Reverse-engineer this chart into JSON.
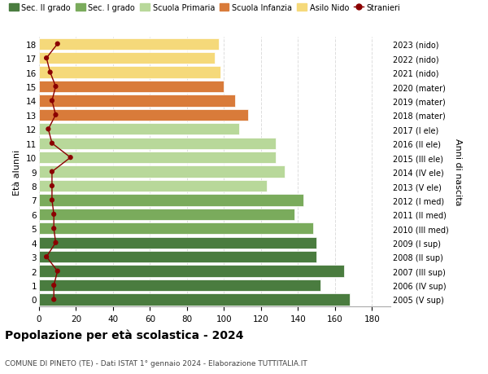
{
  "ages": [
    18,
    17,
    16,
    15,
    14,
    13,
    12,
    11,
    10,
    9,
    8,
    7,
    6,
    5,
    4,
    3,
    2,
    1,
    0
  ],
  "right_labels": [
    "2005 (V sup)",
    "2006 (IV sup)",
    "2007 (III sup)",
    "2008 (II sup)",
    "2009 (I sup)",
    "2010 (III med)",
    "2011 (II med)",
    "2012 (I med)",
    "2013 (V ele)",
    "2014 (IV ele)",
    "2015 (III ele)",
    "2016 (II ele)",
    "2017 (I ele)",
    "2018 (mater)",
    "2019 (mater)",
    "2020 (mater)",
    "2021 (nido)",
    "2022 (nido)",
    "2023 (nido)"
  ],
  "bar_values": [
    168,
    152,
    165,
    150,
    150,
    148,
    138,
    143,
    123,
    133,
    128,
    128,
    108,
    113,
    106,
    100,
    98,
    95,
    97
  ],
  "bar_colors": [
    "#4a7c3f",
    "#4a7c3f",
    "#4a7c3f",
    "#4a7c3f",
    "#4a7c3f",
    "#7aab5c",
    "#7aab5c",
    "#7aab5c",
    "#b8d89a",
    "#b8d89a",
    "#b8d89a",
    "#b8d89a",
    "#b8d89a",
    "#d97b3a",
    "#d97b3a",
    "#d97b3a",
    "#f5d97a",
    "#f5d97a",
    "#f5d97a"
  ],
  "stranieri_values": [
    8,
    8,
    10,
    4,
    9,
    8,
    8,
    7,
    7,
    7,
    17,
    7,
    5,
    9,
    7,
    9,
    6,
    4,
    10
  ],
  "stranieri_color": "#8b0000",
  "title": "Popolazione per età scolastica - 2024",
  "subtitle": "COMUNE DI PINETO (TE) - Dati ISTAT 1° gennaio 2024 - Elaborazione TUTTITALIA.IT",
  "ylabel_left": "Età alunni",
  "ylabel_right": "Anni di nascita",
  "xlim": [
    0,
    190
  ],
  "xticks": [
    0,
    20,
    40,
    60,
    80,
    100,
    120,
    140,
    160,
    180
  ],
  "legend_items": [
    {
      "label": "Sec. II grado",
      "color": "#4a7c3f"
    },
    {
      "label": "Sec. I grado",
      "color": "#7aab5c"
    },
    {
      "label": "Scuola Primaria",
      "color": "#b8d89a"
    },
    {
      "label": "Scuola Infanzia",
      "color": "#d97b3a"
    },
    {
      "label": "Asilo Nido",
      "color": "#f5d97a"
    },
    {
      "label": "Stranieri",
      "color": "#8b0000"
    }
  ],
  "background_color": "#ffffff",
  "grid_color": "#dddddd",
  "bar_height": 0.82
}
